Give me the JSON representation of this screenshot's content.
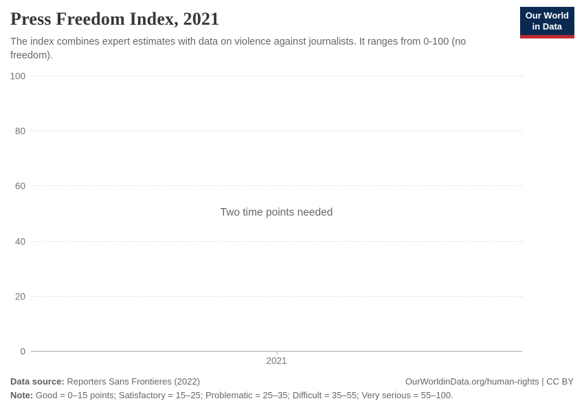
{
  "header": {
    "title": "Press Freedom Index, 2021",
    "subtitle": "The index combines expert estimates with data on violence against journalists. It ranges from 0-100 (no freedom).",
    "logo": {
      "line1": "Our World",
      "line2": "in Data"
    }
  },
  "plot": {
    "empty_message": "Two time points needed",
    "y_ticks": [
      100,
      80,
      60,
      40,
      20,
      0
    ],
    "ylim": [
      0,
      100
    ],
    "x_tick": "2021"
  },
  "footer": {
    "data_source_label": "Data source:",
    "data_source_value": "Reporters Sans Frontieres (2022)",
    "right_link": "OurWorldinData.org/human-rights",
    "right_rest": "| CC BY",
    "note_label": "Note:",
    "note_value": "Good = 0–15 points; Satisfactory = 15–25; Problematic = 25–35; Difficult = 35–55; Very serious = 55–100."
  },
  "colors": {
    "logo_navy": "#0a2a52",
    "logo_red": "#c0282f",
    "title_text": "#383838",
    "body_gray": "#666666",
    "tick_gray": "#737373",
    "gridline": "#e2e2e2",
    "axis_line": "#a8a8a8"
  },
  "chart_data": {
    "type": "line",
    "title": "Press Freedom Index, 2021",
    "subtitle": "The index combines expert estimates with data on violence against journalists. It ranges from 0-100 (no freedom).",
    "series": [],
    "empty_message": "Two time points needed",
    "x_ticks": [
      "2021"
    ],
    "y_ticks": [
      0,
      20,
      40,
      60,
      80,
      100
    ],
    "ylim": [
      0,
      100
    ],
    "xlabel": "",
    "ylabel": "",
    "grid": true,
    "legend": "none",
    "data_source": "Reporters Sans Frontieres (2022)",
    "note": "Good = 0–15 points; Satisfactory = 15–25; Problematic = 25–35; Difficult = 35–55; Very serious = 55–100."
  }
}
